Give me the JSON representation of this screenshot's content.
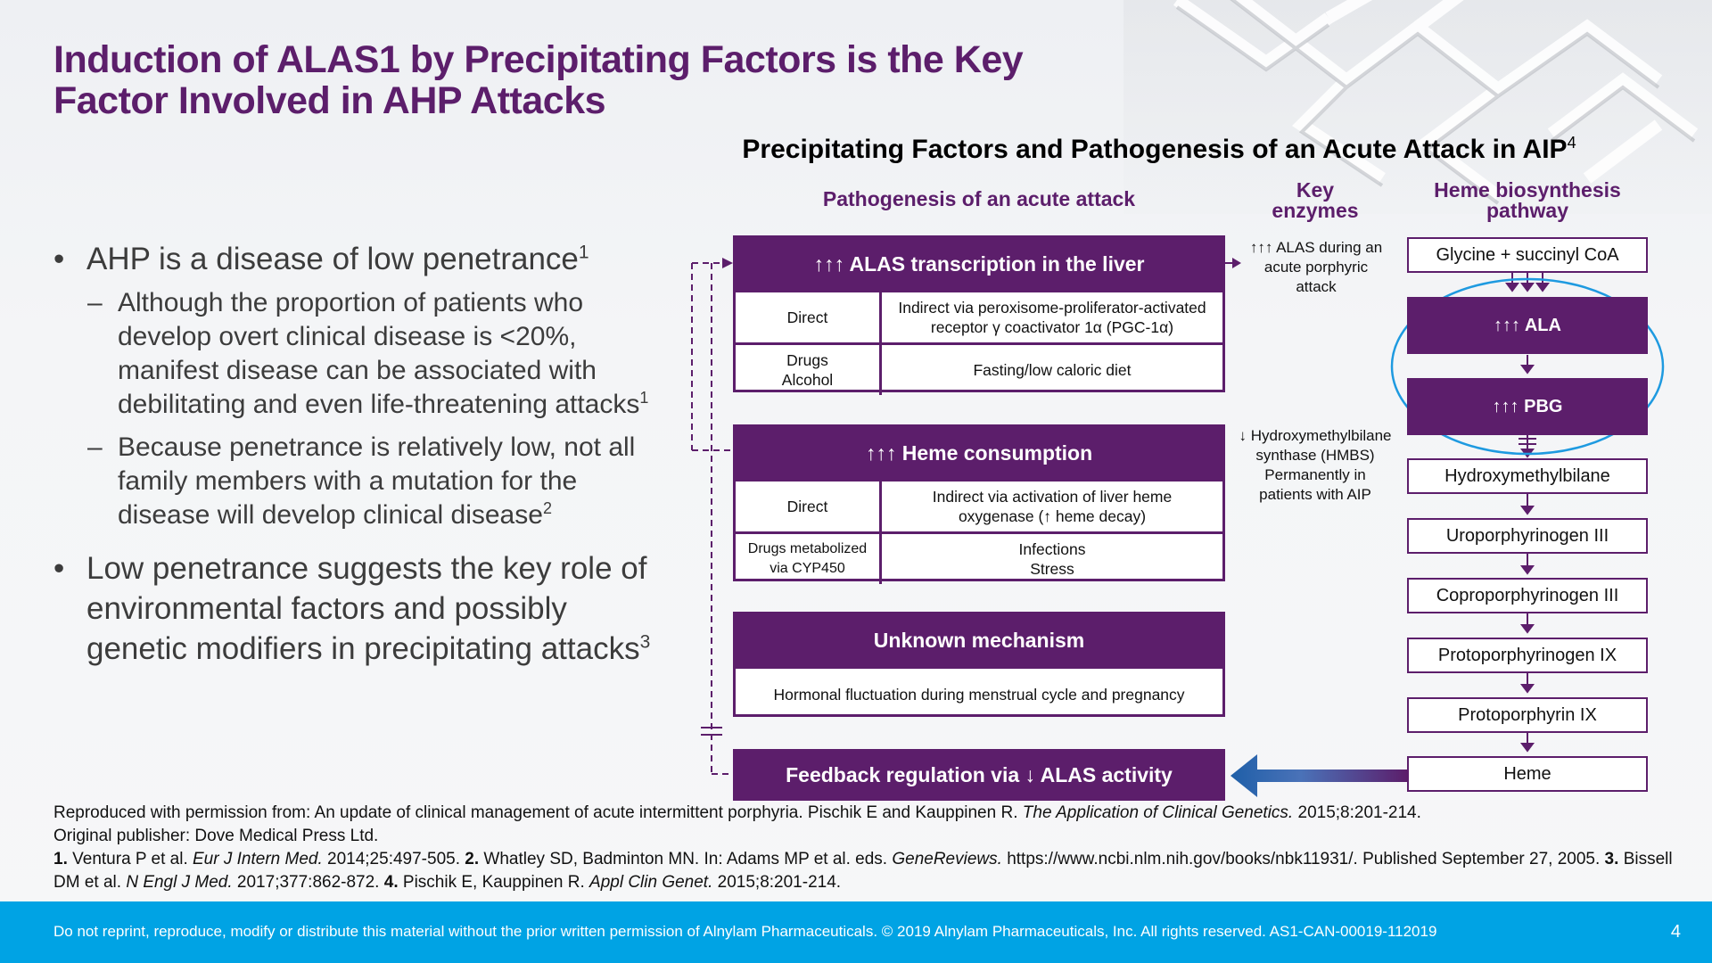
{
  "title": "Induction of ALAS1 by Precipitating Factors is the Key Factor Involved in AHP Attacks",
  "diagram_title": "Precipitating Factors and Pathogenesis of an Acute Attack in AIP",
  "diagram_title_sup": "4",
  "bullets": {
    "b1": {
      "text": "AHP is a disease of low penetrance",
      "sup": "1"
    },
    "b1_sub1": {
      "text": "Although the proportion of patients who develop overt clinical disease is <20%, manifest disease can be associated with debilitating and even life-threatening attacks",
      "sup": "1"
    },
    "b1_sub2": {
      "text": "Because penetrance is relatively low, not all family members with a mutation for the disease will develop clinical disease",
      "sup": "2"
    },
    "b2": {
      "text": "Low penetrance suggests the key role of environmental factors and possibly genetic modifiers in precipitating attacks",
      "sup": "3"
    },
    "bullet_char": "•",
    "dash_char": "–"
  },
  "column_headers": {
    "pathogenesis": "Pathogenesis of an acute attack",
    "key_enzymes_1": "Key",
    "key_enzymes_2": "enzymes",
    "heme_pathway_1": "Heme biosynthesis",
    "heme_pathway_2": "pathway"
  },
  "boxes": {
    "alas": {
      "title": "↑↑↑ ALAS transcription in the liver",
      "row1_left": "Direct",
      "row1_right_1": "Indirect via peroxisome-proliferator-activated",
      "row1_right_2": "receptor γ coactivator 1α (PGC-1α)",
      "row2_left_1": "Drugs",
      "row2_left_2": "Alcohol",
      "row2_right": "Fasting/low caloric diet"
    },
    "heme": {
      "title": "↑↑↑ Heme consumption",
      "row1_left": "Direct",
      "row1_right_1": "Indirect via activation of liver heme",
      "row1_right_2": "oxygenase (↑ heme decay)",
      "row2_left_1": "Drugs metabolized",
      "row2_left_2": "via CYP450",
      "row2_right_1": "Infections",
      "row2_right_2": "Stress"
    },
    "unknown": {
      "title": "Unknown mechanism",
      "row1": "Hormonal fluctuation during menstrual cycle and pregnancy"
    },
    "feedback": "Feedback regulation via ↓ ALAS activity"
  },
  "enzymes": {
    "alas_1": "↑↑↑ ALAS during an",
    "alas_2": "acute porphyric",
    "alas_3": "attack",
    "hmbs_1": "↓ Hydroxymethylbilane",
    "hmbs_2": "synthase (HMBS)",
    "hmbs_3": "Permanently in",
    "hmbs_4": "patients with AIP"
  },
  "pathway": [
    "Glycine + succinyl CoA",
    "↑↑↑ ALA",
    "↑↑↑ PBG",
    "Hydroxymethylbilane",
    "Uroporphyrinogen III",
    "Coproporphyrinogen III",
    "Protoporphyrinogen IX",
    "Protoporphyrin IX",
    "Heme"
  ],
  "colors": {
    "purple": "#5c1e6b",
    "blue_arrow": "#1f5fa8",
    "highlight_circle": "#1e9ae0",
    "footer_bar": "#00a3e4"
  },
  "references": {
    "line1_pre": "Reproduced with permission from: An update of clinical management of acute intermittent porphyria. Pischik E and Kauppinen R.",
    "line1_journal": "The Application of Clinical Genetics.",
    "line1_post": "2015;8:201-214.",
    "line2": "Original publisher: Dove Medical Press Ltd.",
    "r1_num": "1.",
    "r1_text": "Ventura P et al.",
    "r1_journal": "Eur J Intern Med.",
    "r1_post": "2014;25:497-505.",
    "r2_num": "2.",
    "r2_text": "Whatley SD, Badminton MN. In: Adams MP et al. eds.",
    "r2_journal": "GeneReviews.",
    "r2_post": "https://www.ncbi.nlm.nih.gov/books/nbk11931/. Published September 27, 2005.",
    "r3_num": "3.",
    "r3_text": "Bissell DM et al.",
    "r3_journal": "N Engl J Med.",
    "r3_post": "2017;377:862-872.",
    "r4_num": "4.",
    "r4_text": "Pischik E, Kauppinen R.",
    "r4_journal": "Appl Clin Genet.",
    "r4_post": "2015;8:201-214."
  },
  "footer": {
    "text": "Do not reprint, reproduce, modify or distribute this material without the prior written permission of Alnylam Pharmaceuticals. © 2019 Alnylam Pharmaceuticals, Inc.  All rights reserved. AS1-CAN-00019-112019",
    "page": "4"
  }
}
